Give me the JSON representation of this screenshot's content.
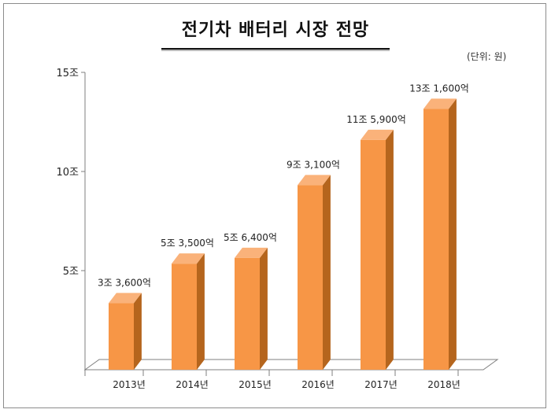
{
  "chart_data": {
    "type": "bar",
    "title": "전기차 배터리 시장 전망",
    "unit_note": "(단위: 원)",
    "categories": [
      "2013년",
      "2014년",
      "2015년",
      "2016년",
      "2017년",
      "2018년"
    ],
    "values": [
      3.36,
      5.35,
      5.64,
      9.31,
      11.59,
      13.16
    ],
    "data_labels": [
      "3조 3,600억",
      "5조 3,500억",
      "5조 6,400억",
      "9조 3,100억",
      "11조 5,900억",
      "13조 1,600억"
    ],
    "y_ticks": [
      {
        "value": 5,
        "label": "5조"
      },
      {
        "value": 10,
        "label": "10조"
      },
      {
        "value": 15,
        "label": "15조"
      }
    ],
    "ylim": [
      0,
      15
    ],
    "grid": false,
    "legend": "none",
    "colors": {
      "bar_front": "#f79646",
      "bar_side": "#b5651d",
      "bar_top": "#fab27a",
      "floor": "#ffffff",
      "axis": "#7f7f7f"
    }
  }
}
